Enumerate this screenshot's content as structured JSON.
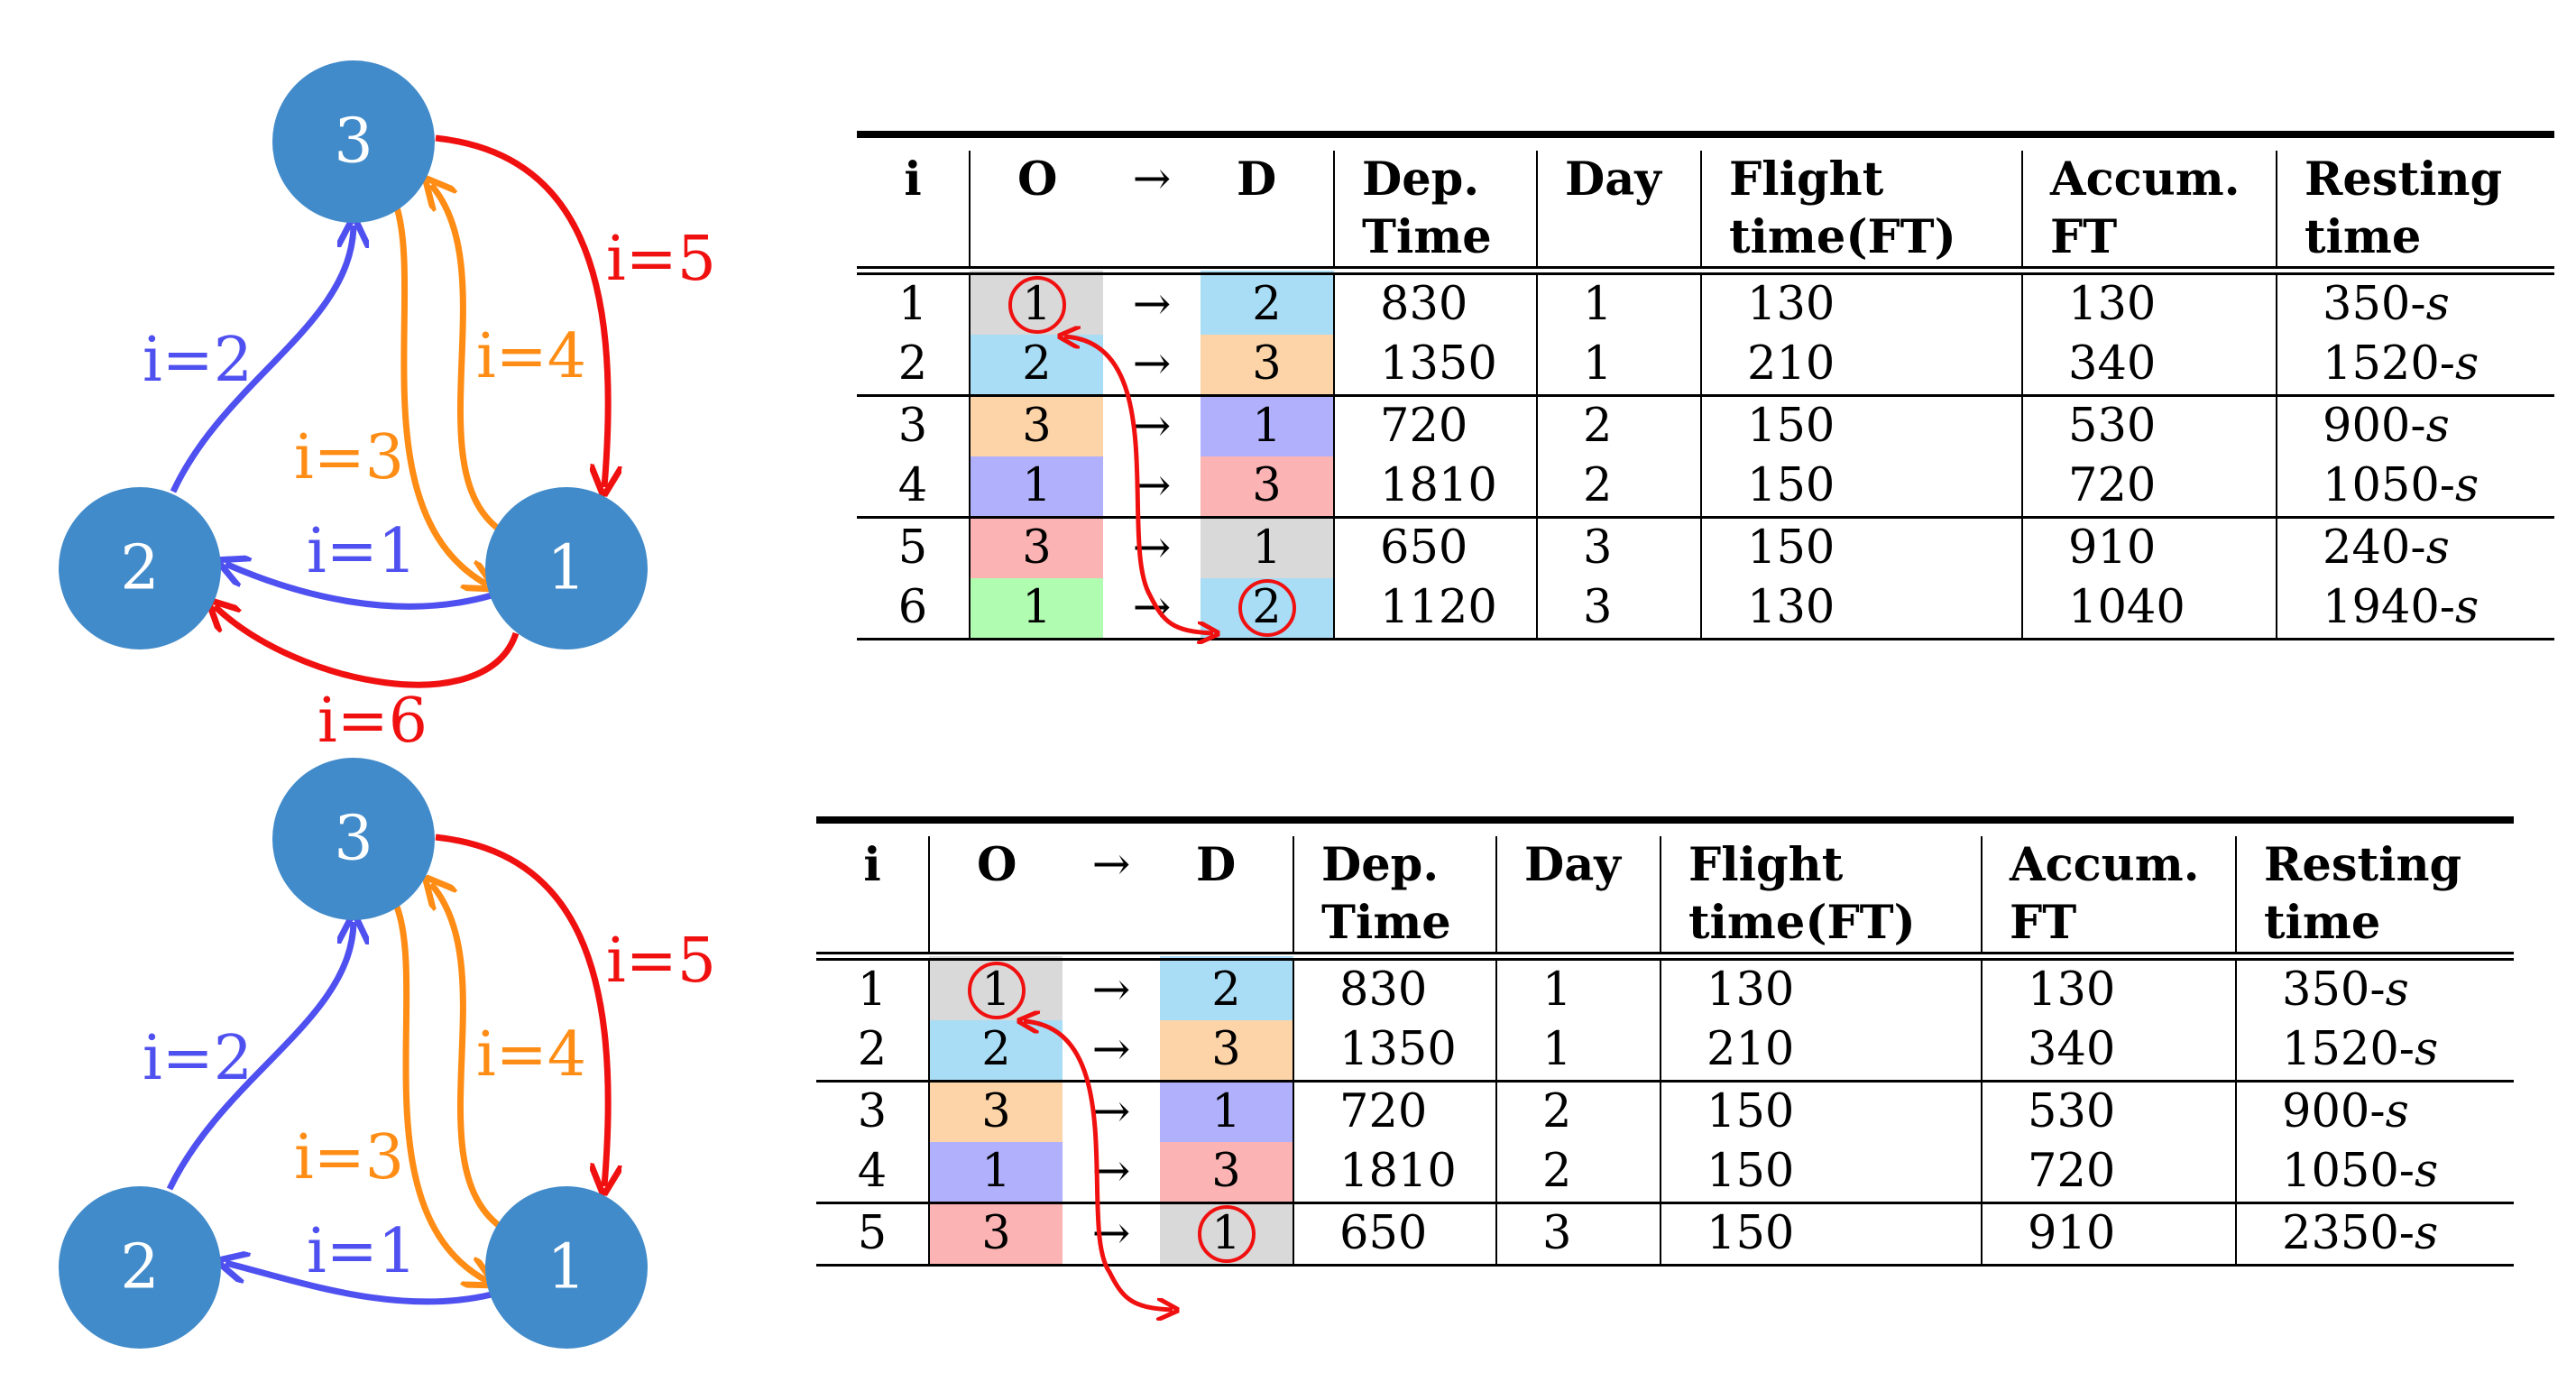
{
  "colors": {
    "node": "#428bca",
    "blue_edge": "#4f50f0",
    "orange_edge": "#ff8c14",
    "red_edge": "#f01010",
    "cell_gray": "#d9d9d9",
    "cell_lightblue": "#a9dcf5",
    "cell_peach": "#fcd4a8",
    "cell_lavender": "#b1b0fc",
    "cell_pink": "#fbb3b3",
    "cell_green": "#b0fcb0",
    "circle_marker": "#f01010"
  },
  "graph_top": {
    "nodes": [
      "3",
      "2",
      "1"
    ],
    "edge_labels": [
      "i=1",
      "i=2",
      "i=3",
      "i=4",
      "i=5",
      "i=6"
    ]
  },
  "graph_bottom": {
    "nodes": [
      "3",
      "2",
      "1"
    ],
    "edge_labels": [
      "i=1",
      "i=2",
      "i=3",
      "i=4",
      "i=5"
    ]
  },
  "table_headers": {
    "i": "i",
    "o": "O",
    "arrow": "→",
    "d": "D",
    "dep": "Dep.",
    "dep2": "Time",
    "day": "Day",
    "flight": "Flight",
    "flight2": "time(FT)",
    "accum": "Accum.",
    "accum2": "FT",
    "rest": "Resting",
    "rest2": "time"
  },
  "table_top": {
    "rows": [
      {
        "i": "1",
        "o": "1",
        "arrow": "→",
        "d": "2",
        "dep": "830",
        "day": "1",
        "ft": "130",
        "accum": "130",
        "rest": "350-",
        "rest_var": "s"
      },
      {
        "i": "2",
        "o": "2",
        "arrow": "→",
        "d": "3",
        "dep": "1350",
        "day": "1",
        "ft": "210",
        "accum": "340",
        "rest": "1520-",
        "rest_var": "s"
      },
      {
        "i": "3",
        "o": "3",
        "arrow": "→",
        "d": "1",
        "dep": "720",
        "day": "2",
        "ft": "150",
        "accum": "530",
        "rest": "900-",
        "rest_var": "s"
      },
      {
        "i": "4",
        "o": "1",
        "arrow": "→",
        "d": "3",
        "dep": "1810",
        "day": "2",
        "ft": "150",
        "accum": "720",
        "rest": "1050-",
        "rest_var": "s"
      },
      {
        "i": "5",
        "o": "3",
        "arrow": "→",
        "d": "1",
        "dep": "650",
        "day": "3",
        "ft": "150",
        "accum": "910",
        "rest": "240-",
        "rest_var": "s"
      },
      {
        "i": "6",
        "o": "1",
        "arrow": "→",
        "d": "2",
        "dep": "1120",
        "day": "3",
        "ft": "130",
        "accum": "1040",
        "rest": "1940-",
        "rest_var": "s"
      }
    ]
  },
  "table_bottom": {
    "rows": [
      {
        "i": "1",
        "o": "1",
        "arrow": "→",
        "d": "2",
        "dep": "830",
        "day": "1",
        "ft": "130",
        "accum": "130",
        "rest": "350-",
        "rest_var": "s"
      },
      {
        "i": "2",
        "o": "2",
        "arrow": "→",
        "d": "3",
        "dep": "1350",
        "day": "1",
        "ft": "210",
        "accum": "340",
        "rest": "1520-",
        "rest_var": "s"
      },
      {
        "i": "3",
        "o": "3",
        "arrow": "→",
        "d": "1",
        "dep": "720",
        "day": "2",
        "ft": "150",
        "accum": "530",
        "rest": "900-",
        "rest_var": "s"
      },
      {
        "i": "4",
        "o": "1",
        "arrow": "→",
        "d": "3",
        "dep": "1810",
        "day": "2",
        "ft": "150",
        "accum": "720",
        "rest": "1050-",
        "rest_var": "s"
      },
      {
        "i": "5",
        "o": "3",
        "arrow": "→",
        "d": "1",
        "dep": "650",
        "day": "3",
        "ft": "150",
        "accum": "910",
        "rest": "2350-",
        "rest_var": "s"
      }
    ]
  }
}
